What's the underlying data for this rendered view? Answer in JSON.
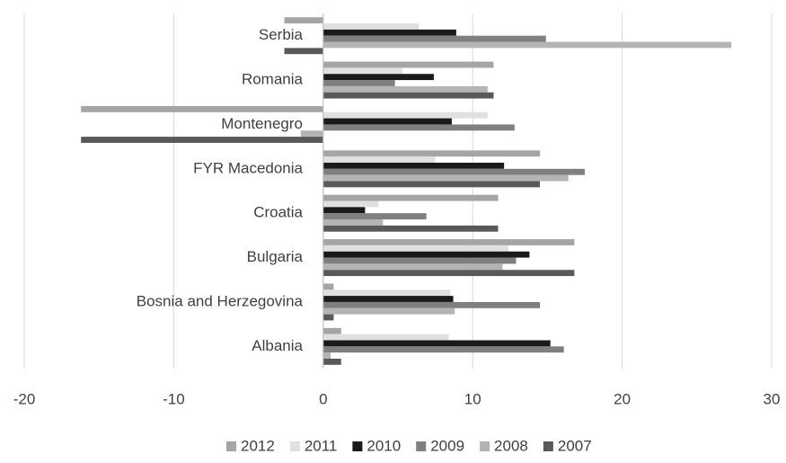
{
  "chart_data": {
    "type": "hbar",
    "categories": [
      "Albania",
      "Bosnia and Herzegovina",
      "Bulgaria",
      "Croatia",
      "FYR Macedonia",
      "Montenegro",
      "Romania",
      "Serbia"
    ],
    "series": [
      {
        "name": "2012",
        "color": "#a5a5a5",
        "values": [
          1.2,
          0.7,
          16.8,
          11.7,
          14.5,
          -16.2,
          11.4,
          -2.6
        ]
      },
      {
        "name": "2011",
        "color": "#e0e0e0",
        "values": [
          8.4,
          8.5,
          12.4,
          3.7,
          7.5,
          11.0,
          5.3,
          6.4
        ]
      },
      {
        "name": "2010",
        "color": "#1a1a1a",
        "values": [
          15.2,
          8.7,
          13.8,
          2.8,
          12.1,
          8.6,
          7.4,
          8.9
        ]
      },
      {
        "name": "2009",
        "color": "#7f7f7f",
        "values": [
          16.1,
          14.5,
          12.9,
          6.9,
          17.5,
          12.8,
          4.8,
          14.9
        ]
      },
      {
        "name": "2008",
        "color": "#b4b4b4",
        "values": [
          0.5,
          8.8,
          12.0,
          4.0,
          16.4,
          -1.5,
          11.0,
          27.3
        ]
      },
      {
        "name": "2007",
        "color": "#595959",
        "values": [
          1.2,
          0.7,
          16.8,
          11.7,
          14.5,
          -16.2,
          11.4,
          -2.6
        ]
      }
    ],
    "xlim": [
      -20,
      30
    ],
    "xticks": [
      -20,
      -10,
      0,
      10,
      20,
      30
    ],
    "grid": true,
    "legend": "bottom"
  }
}
